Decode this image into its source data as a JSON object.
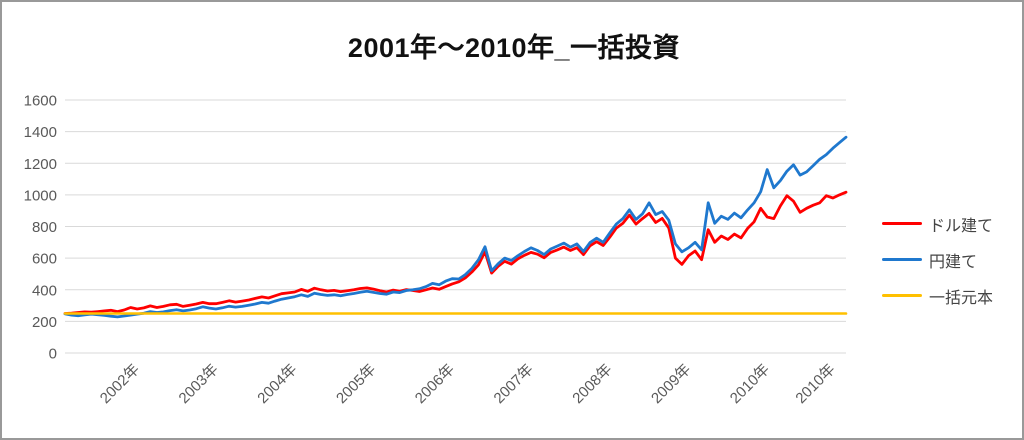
{
  "window": {
    "background": "#ffffff",
    "border_color": "#999999"
  },
  "chart_data": {
    "type": "line",
    "title": "2001年～2010年_一括投資",
    "xlabel": "",
    "ylabel": "",
    "ylim": [
      0,
      1600
    ],
    "y_ticks": [
      0,
      200,
      400,
      600,
      800,
      1000,
      1200,
      1400,
      1600
    ],
    "grid": true,
    "gridline_color": "#d9d9d9",
    "axis_label_color": "#595959",
    "legend_position": "right",
    "x_tick_labels": [
      "2002年",
      "2003年",
      "2004年",
      "2005年",
      "2006年",
      "2007年",
      "2008年",
      "2009年",
      "2010年",
      "2010年"
    ],
    "x_tick_months": [
      11,
      23,
      35,
      47,
      59,
      71,
      83,
      95,
      107,
      117
    ],
    "months_total": 120,
    "x_start_label": "2001",
    "series": [
      {
        "name": "ドル建て",
        "slug": "usd",
        "color": "#ff0000",
        "values": [
          250,
          252,
          256,
          260,
          258,
          262,
          266,
          270,
          262,
          272,
          288,
          278,
          285,
          298,
          288,
          295,
          305,
          308,
          295,
          302,
          310,
          320,
          312,
          312,
          320,
          330,
          322,
          328,
          335,
          345,
          355,
          348,
          362,
          375,
          380,
          386,
          402,
          390,
          410,
          400,
          392,
          396,
          388,
          394,
          400,
          408,
          412,
          404,
          394,
          386,
          398,
          391,
          401,
          395,
          389,
          400,
          411,
          403,
          420,
          437,
          450,
          475,
          512,
          558,
          640,
          505,
          548,
          580,
          562,
          595,
          618,
          636,
          625,
          602,
          636,
          652,
          670,
          648,
          666,
          622,
          678,
          704,
          680,
          732,
          790,
          820,
          872,
          815,
          850,
          883,
          825,
          851,
          790,
          600,
          560,
          615,
          645,
          590,
          780,
          700,
          740,
          718,
          752,
          728,
          788,
          830,
          915,
          860,
          850,
          930,
          995,
          960,
          890,
          915,
          935,
          950,
          995,
          980,
          1000,
          1017
        ]
      },
      {
        "name": "円建て",
        "slug": "jpy",
        "color": "#1f78ce",
        "values": [
          247,
          240,
          236,
          241,
          246,
          242,
          238,
          233,
          228,
          234,
          240,
          246,
          252,
          262,
          256,
          260,
          268,
          274,
          266,
          272,
          280,
          292,
          284,
          278,
          286,
          296,
          290,
          295,
          302,
          310,
          320,
          315,
          328,
          340,
          348,
          356,
          368,
          358,
          378,
          370,
          364,
          368,
          362,
          370,
          376,
          384,
          390,
          383,
          376,
          372,
          386,
          382,
          395,
          400,
          406,
          420,
          440,
          431,
          455,
          470,
          468,
          495,
          535,
          590,
          672,
          520,
          565,
          600,
          585,
          615,
          642,
          665,
          648,
          622,
          658,
          676,
          695,
          670,
          690,
          642,
          698,
          726,
          700,
          758,
          815,
          850,
          905,
          845,
          880,
          950,
          875,
          895,
          840,
          690,
          640,
          665,
          700,
          652,
          950,
          820,
          865,
          845,
          885,
          855,
          905,
          950,
          1020,
          1160,
          1045,
          1090,
          1150,
          1190,
          1125,
          1145,
          1185,
          1225,
          1255,
          1295,
          1330,
          1365
        ]
      },
      {
        "name": "一括元本",
        "slug": "principal",
        "color": "#ffc000",
        "constant": 250
      }
    ]
  }
}
